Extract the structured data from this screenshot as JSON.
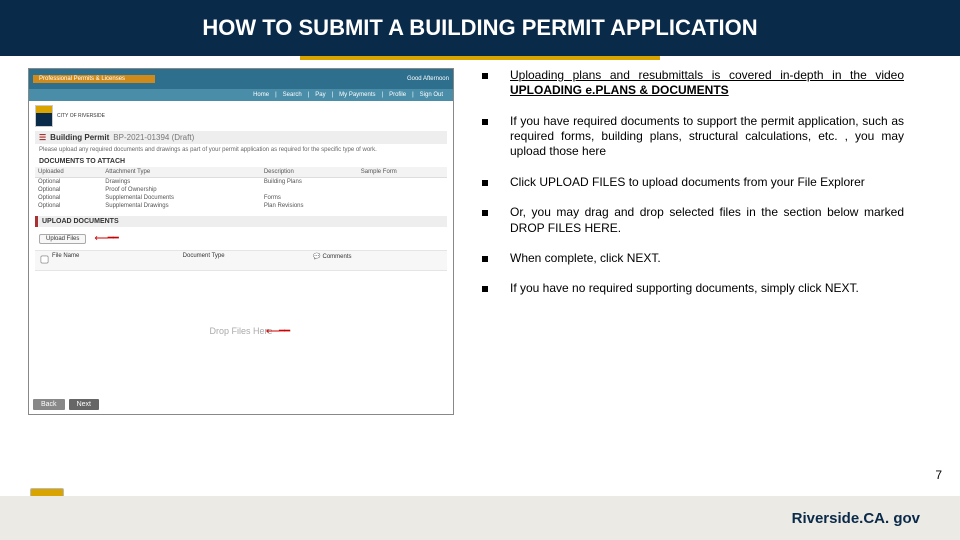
{
  "title": "HOW TO SUBMIT A BUILDING PERMIT APPLICATION",
  "bullets": [
    {
      "html": "<u>Uploading plans and resubmittals is covered in-depth in the video <strong>UPLOADING e.PLANS &amp; DOCUMENTS</strong></u>"
    },
    {
      "html": "If you have required documents to support the permit application, such as required forms, building plans, structural calculations, etc. , you may upload those here"
    },
    {
      "html": "Click UPLOAD FILES to upload documents from your File Explorer"
    },
    {
      "html": "Or, you may drag and drop selected files in the section below marked DROP FILES HERE."
    },
    {
      "html": "When complete, click NEXT."
    },
    {
      "html": "If you have no required supporting documents, simply click NEXT."
    }
  ],
  "footer": {
    "url": "Riverside.CA. gov",
    "city": "RIVERSIDE",
    "cityof": "CITY OF"
  },
  "pageNumber": "7",
  "app": {
    "topTab": "Professional Permits & Licenses",
    "topRight": "Good Afternoon",
    "nav": [
      "Home",
      "Search",
      "Pay",
      "My Payments",
      "Profile",
      "Sign Out"
    ],
    "logoText": "CITY OF RIVERSIDE",
    "permitHead": "Building Permit",
    "permitSub": "BP-2021-01394 (Draft)",
    "note": "Please upload any required documents and drawings as part of your permit application as required for the specific type of work.",
    "docListTitle": "DOCUMENTS TO ATTACH",
    "docTable": {
      "cols": [
        "Uploaded",
        "Attachment Type",
        "Description",
        "Sample Form"
      ],
      "rows": [
        [
          "Optional",
          "Drawings",
          "Building Plans",
          ""
        ],
        [
          "Optional",
          "Proof of Ownership",
          "",
          ""
        ],
        [
          "Optional",
          "Supplemental Documents",
          "Forms",
          ""
        ],
        [
          "Optional",
          "Supplemental Drawings",
          "Plan Revisions",
          ""
        ]
      ]
    },
    "uploadTitle": "UPLOAD DOCUMENTS",
    "uploadBtn": "Upload Files",
    "fileRow": {
      "name": "File Name",
      "type": "Document Type",
      "comments": "Comments"
    },
    "dropText": "Drop Files Here",
    "back": "Back",
    "next": "Next"
  },
  "colors": {
    "navy": "#0a2a4a",
    "gold": "#d9a400",
    "teal": "#2e6f8e",
    "footerBg": "#eceae4"
  }
}
